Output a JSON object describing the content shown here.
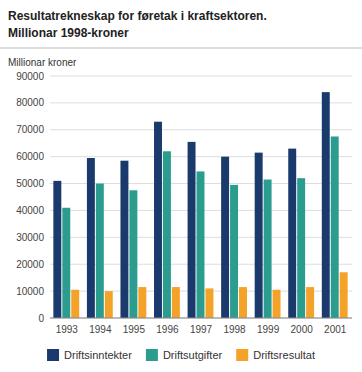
{
  "chart_data": {
    "type": "bar",
    "title": "Resultatrekneskap for føretak i kraftsektoren.",
    "subtitle": "Millionar 1998-kroner",
    "y_label": "Millionar kroner",
    "categories": [
      "1993",
      "1994",
      "1995",
      "1996",
      "1997",
      "1998",
      "1999",
      "2000",
      "2001"
    ],
    "series": [
      {
        "name": "Driftsinntekter",
        "color": "#1a3a6e",
        "values": [
          51000,
          59500,
          58500,
          73000,
          65500,
          60000,
          61500,
          63000,
          84000
        ]
      },
      {
        "name": "Driftsutgifter",
        "color": "#2a9d8f",
        "values": [
          41000,
          50000,
          47500,
          62000,
          54500,
          49500,
          51500,
          52000,
          67500
        ]
      },
      {
        "name": "Driftsresultat",
        "color": "#f4a228",
        "values": [
          10500,
          10000,
          11500,
          11500,
          11000,
          11500,
          10500,
          11500,
          17000
        ]
      }
    ],
    "ylim": [
      0,
      90000
    ],
    "yticks": [
      0,
      10000,
      20000,
      30000,
      40000,
      50000,
      60000,
      70000,
      80000,
      90000
    ],
    "grid": true,
    "legend": "bottom"
  }
}
